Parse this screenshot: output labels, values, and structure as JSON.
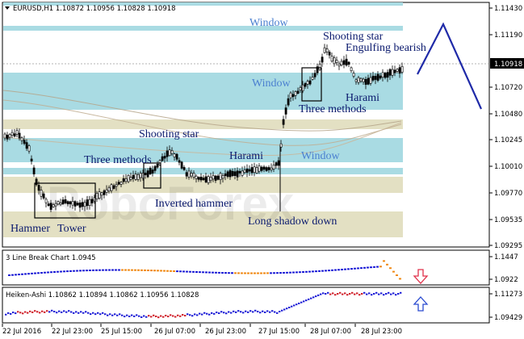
{
  "main_panel": {
    "title": "EURUSD,H1  1.10872 1.10956 1.10828 1.10918",
    "price_ticks": [
      "1.11430",
      "1.11190",
      "1.10918",
      "1.10720",
      "1.10480",
      "1.10245",
      "1.10010",
      "1.09770",
      "1.09535",
      "1.09295"
    ],
    "current_price": "1.10918",
    "watermark": "RoboForex",
    "annotations": {
      "window_top": "Window",
      "window_mid": "Window",
      "window_low": "Window",
      "shooting_star_top": "Shooting star",
      "engulfing_bearish": "Engulfing bearish",
      "harami_right": "Harami",
      "three_methods_right": "Three methods",
      "shooting_star_mid": "Shooting star",
      "three_methods_left": "Three methods",
      "harami_mid": "Harami",
      "inverted_hammer": "Inverted hammer",
      "long_shadow_down": "Long shadow down",
      "hammer": "Hammer",
      "tower": "Tower"
    }
  },
  "line_break_panel": {
    "title": "3 Line Break Chart 1.0945",
    "ticks": [
      "1.1447",
      "1.0922"
    ],
    "signal": "down"
  },
  "heiken_ashi_panel": {
    "title": "Heiken-Ashi 1.10862 1.10894 1.10862 1.10956 1.10828",
    "ticks": [
      "1.11273",
      "1.09429"
    ],
    "signal": "up"
  },
  "time_axis": [
    "22 Jul 2016",
    "22 Jul 23:00",
    "25 Jul 15:00",
    "26 Jul 07:00",
    "26 Jul 23:00",
    "27 Jul 15:00",
    "28 Jul 07:00",
    "28 Jul 23:00"
  ],
  "colors": {
    "window_band": "#a9dbe3",
    "beige_band": "#e3e0c3",
    "annotation_text": "#0b1a6e",
    "window_text": "#4a7fd0",
    "forecast_line": "#1f2aa8",
    "bull": "#1c1cd6",
    "bear": "#f08a16",
    "ha_bear": "#d0202a",
    "down_arrow": "#e0304a",
    "up_arrow": "#2a4bd0"
  }
}
